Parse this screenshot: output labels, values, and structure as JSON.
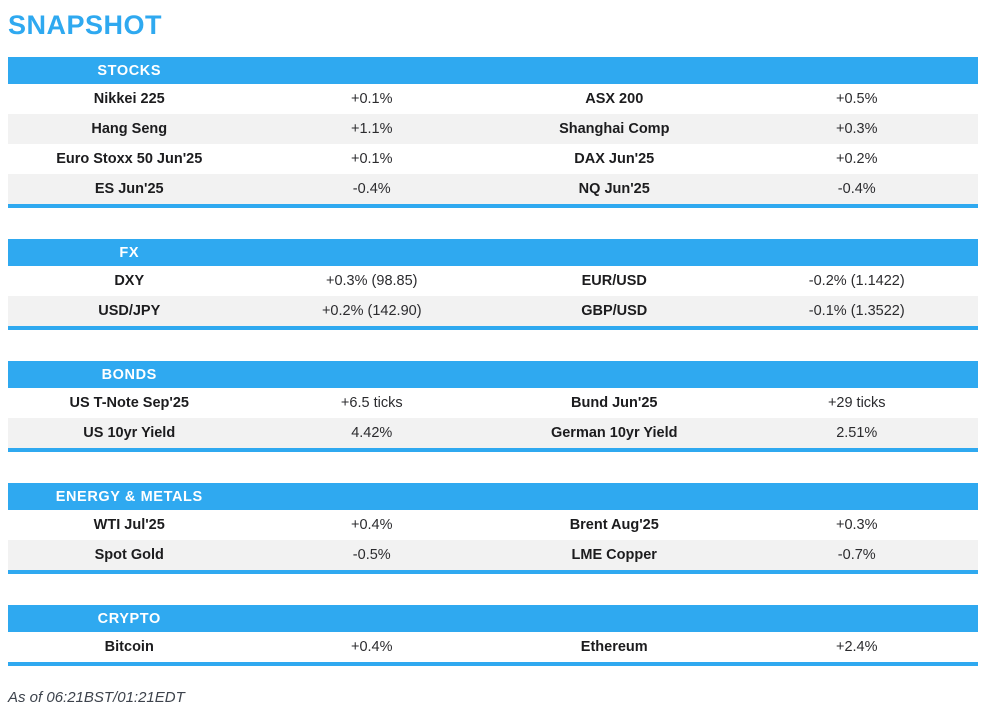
{
  "page": {
    "title": "SNAPSHOT",
    "footer": "As of 06:21BST/01:21EDT"
  },
  "colors": {
    "accent_blue": "#2fa9f0",
    "row_alt_gray": "#f2f2f2",
    "header_text": "#ffffff",
    "label_text": "#1c1c1e",
    "footer_text": "#3d434c"
  },
  "sections": [
    {
      "label": "STOCKS",
      "rows": [
        {
          "label1": "Nikkei 225",
          "value1": "+0.1%",
          "label2": "ASX 200",
          "value2": "+0.5%"
        },
        {
          "label1": "Hang Seng",
          "value1": "+1.1%",
          "label2": "Shanghai Comp",
          "value2": "+0.3%"
        },
        {
          "label1": "Euro Stoxx 50 Jun'25",
          "value1": "+0.1%",
          "label2": "DAX Jun'25",
          "value2": "+0.2%"
        },
        {
          "label1": "ES Jun'25",
          "value1": "-0.4%",
          "label2": "NQ Jun'25",
          "value2": "-0.4%"
        }
      ]
    },
    {
      "label": "FX",
      "rows": [
        {
          "label1": "DXY",
          "value1": "+0.3% (98.85)",
          "label2": "EUR/USD",
          "value2": "-0.2% (1.1422)"
        },
        {
          "label1": "USD/JPY",
          "value1": "+0.2% (142.90)",
          "label2": "GBP/USD",
          "value2": "-0.1% (1.3522)"
        }
      ]
    },
    {
      "label": "BONDS",
      "rows": [
        {
          "label1": "US T-Note Sep'25",
          "value1": "+6.5 ticks",
          "label2": "Bund Jun'25",
          "value2": "+29 ticks"
        },
        {
          "label1": "US 10yr Yield",
          "value1": "4.42%",
          "label2": "German 10yr Yield",
          "value2": "2.51%"
        }
      ]
    },
    {
      "label": "ENERGY & METALS",
      "rows": [
        {
          "label1": "WTI Jul'25",
          "value1": "+0.4%",
          "label2": "Brent Aug'25",
          "value2": "+0.3%"
        },
        {
          "label1": "Spot Gold",
          "value1": "-0.5%",
          "label2": "LME Copper",
          "value2": "-0.7%"
        }
      ]
    },
    {
      "label": "CRYPTO",
      "rows": [
        {
          "label1": "Bitcoin",
          "value1": "+0.4%",
          "label2": "Ethereum",
          "value2": "+2.4%"
        }
      ]
    }
  ]
}
